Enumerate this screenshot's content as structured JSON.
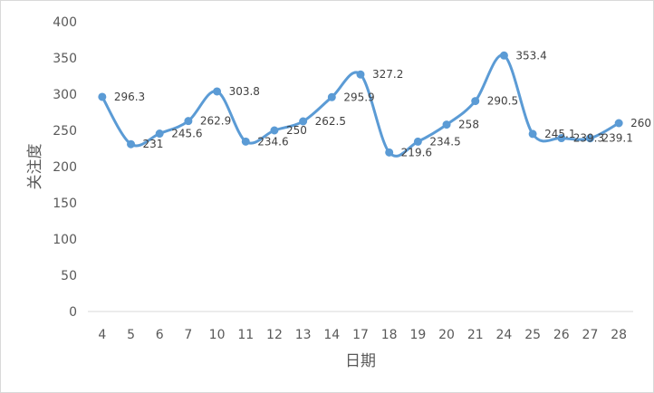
{
  "chart_data": {
    "type": "line",
    "smooth": true,
    "categories": [
      "4",
      "5",
      "6",
      "7",
      "10",
      "11",
      "12",
      "13",
      "14",
      "17",
      "18",
      "19",
      "20",
      "21",
      "24",
      "25",
      "26",
      "27",
      "28"
    ],
    "series": [
      {
        "values": [
          296.3,
          231,
          245.6,
          262.9,
          303.8,
          234.6,
          250,
          262.5,
          295.9,
          327.2,
          219.6,
          234.5,
          258,
          290.5,
          353.4,
          245.1,
          239.3,
          239.1,
          260
        ],
        "labels": [
          "296.3",
          "231",
          "245.6",
          "262.9",
          "303.8",
          "234.6",
          "250",
          "262.5",
          "295.9",
          "327.2",
          "219.6",
          "234.5",
          "258",
          "290.5",
          "353.4",
          "245.1",
          "239.3",
          "239.1",
          "260"
        ],
        "color": "#5b9bd5"
      }
    ],
    "xlabel": "日期",
    "ylabel": "关注度",
    "ylim": [
      0,
      400
    ],
    "yticks": [
      "0",
      "50",
      "100",
      "150",
      "200",
      "250",
      "300",
      "350",
      "400"
    ],
    "grid": false,
    "legend": false
  }
}
